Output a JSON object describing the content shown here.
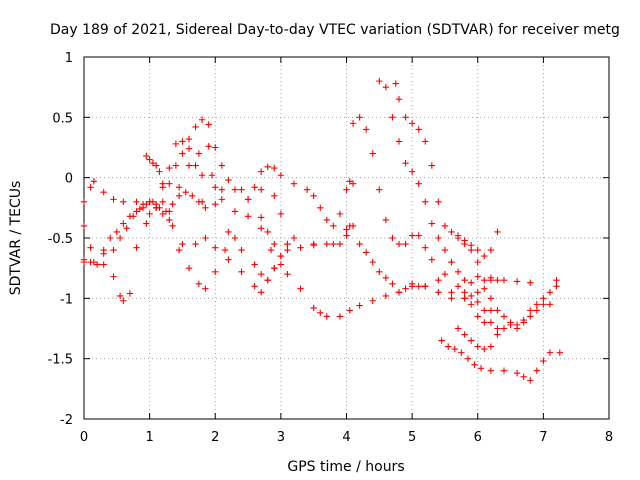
{
  "chart_data": {
    "type": "scatter",
    "title": "Day 189 of 2021, Sidereal Day-to-day VTEC variation (SDTVAR) for receiver metg",
    "xlabel": "GPS time / hours",
    "ylabel": "SDTVAR / TECUs",
    "xlim": [
      0,
      8
    ],
    "ylim": [
      -2,
      1
    ],
    "xticks": [
      "0",
      "1",
      "2",
      "3",
      "4",
      "5",
      "6",
      "7",
      "8"
    ],
    "yticks": [
      "-2",
      "-1.5",
      "-1",
      "-0.5",
      "0",
      "0.5",
      "1"
    ],
    "grid": true,
    "marker": "plus",
    "color": "#ff0000",
    "series": [
      {
        "name": "s1",
        "x": [
          0.0,
          0.1,
          0.15,
          0.3,
          0.45,
          0.6,
          0.8,
          0.9,
          1.0,
          1.1,
          1.2,
          1.3,
          1.45,
          1.6,
          1.75,
          1.9,
          2.0,
          2.1,
          2.3,
          2.5,
          2.7,
          2.9,
          3.0,
          3.2,
          3.5,
          3.8,
          4.0
        ],
        "y": [
          -0.2,
          -0.08,
          -0.03,
          -0.12,
          -0.18,
          -0.2,
          -0.2,
          -0.22,
          -0.2,
          -0.25,
          -0.3,
          -0.28,
          -0.08,
          0.1,
          0.2,
          0.26,
          0.25,
          0.1,
          -0.1,
          -0.18,
          -0.1,
          -0.15,
          -0.3,
          -0.5,
          -0.56,
          -0.55,
          -0.43
        ]
      },
      {
        "name": "s2",
        "x": [
          0.0,
          0.1,
          0.3,
          0.45,
          0.55,
          0.6,
          0.7,
          0.8,
          0.95,
          1.0,
          1.1,
          1.2,
          1.3,
          1.4,
          1.5,
          1.6,
          1.7,
          1.8,
          1.95,
          2.1,
          2.3
        ],
        "y": [
          -0.4,
          -0.58,
          -0.63,
          -0.82,
          -0.98,
          -1.02,
          -0.96,
          -0.58,
          -0.38,
          -0.2,
          -0.25,
          -0.08,
          0.08,
          0.28,
          0.3,
          0.24,
          0.1,
          0.02,
          0.02,
          -0.1,
          -0.28
        ]
      },
      {
        "name": "s3",
        "x": [
          0.0,
          0.1,
          0.2,
          0.3,
          0.4,
          0.5,
          0.6,
          0.7,
          0.8,
          0.9,
          1.0,
          1.1,
          1.2,
          1.3,
          1.4,
          1.5,
          1.6,
          1.7,
          1.8,
          1.9
        ],
        "y": [
          -0.68,
          -0.7,
          -0.72,
          -0.6,
          -0.5,
          -0.45,
          -0.38,
          -0.32,
          -0.28,
          -0.25,
          -0.3,
          -0.22,
          -0.2,
          -0.05,
          0.1,
          0.2,
          0.32,
          0.42,
          0.48,
          0.44
        ]
      },
      {
        "name": "s4",
        "x": [
          0.0,
          0.15,
          0.3,
          0.45,
          0.55,
          0.65,
          0.75,
          0.85,
          0.95,
          1.05,
          1.15,
          1.25,
          1.35,
          1.45,
          1.55,
          1.65,
          1.75,
          1.85,
          2.0,
          2.1
        ],
        "y": [
          -0.7,
          -0.7,
          -0.72,
          -0.6,
          -0.5,
          -0.42,
          -0.32,
          -0.26,
          -0.22,
          -0.2,
          -0.25,
          -0.28,
          -0.22,
          -0.15,
          -0.12,
          -0.15,
          -0.2,
          -0.25,
          -0.22,
          -0.18
        ]
      },
      {
        "name": "s5",
        "x": [
          0.95,
          1.05,
          1.15,
          1.3,
          1.45,
          1.6,
          1.75,
          1.85,
          2.0,
          2.15,
          2.3,
          2.5,
          2.7,
          2.85,
          3.0,
          3.1
        ],
        "y": [
          0.18,
          0.12,
          0.05,
          -0.35,
          -0.6,
          -0.75,
          -0.88,
          -0.92,
          -0.78,
          -0.6,
          -0.5,
          -0.32,
          -0.42,
          -0.6,
          -0.72,
          -0.55
        ]
      },
      {
        "name": "s6",
        "x": [
          1.0,
          1.1,
          1.2,
          1.35,
          1.5,
          1.7,
          1.85,
          2.0,
          2.2,
          2.4,
          2.6,
          2.7,
          2.8,
          2.9,
          3.1,
          3.3,
          3.5,
          3.6,
          3.7,
          3.9,
          4.05,
          4.2,
          4.4,
          4.6,
          4.8,
          5.0,
          5.2,
          5.4,
          5.6,
          5.8,
          6.0,
          6.1,
          6.2,
          6.3
        ],
        "y": [
          0.15,
          0.1,
          -0.05,
          -0.4,
          -0.55,
          -0.55,
          -0.5,
          -0.58,
          -0.68,
          -0.78,
          -0.9,
          -0.95,
          -0.85,
          -0.75,
          -0.8,
          -0.92,
          -1.08,
          -1.12,
          -1.15,
          -1.15,
          -1.1,
          -1.06,
          -1.02,
          -0.98,
          -0.95,
          -0.9,
          -0.9,
          -0.85,
          -0.95,
          -1.0,
          -1.03,
          -1.1,
          -1.2,
          -1.25
        ]
      },
      {
        "name": "s7",
        "x": [
          2.2,
          2.4,
          2.6,
          2.7,
          2.8,
          2.9,
          3.0,
          3.1,
          3.3,
          3.5,
          3.7,
          3.9,
          4.0,
          4.05,
          4.1,
          4.2,
          4.3,
          4.4,
          4.5,
          4.6,
          4.7,
          4.8,
          4.9,
          5.0,
          5.1,
          5.2,
          5.4,
          5.6,
          5.8,
          5.9,
          6.0,
          6.1,
          6.2,
          6.3
        ],
        "y": [
          -0.45,
          -0.6,
          -0.72,
          -0.8,
          -0.85,
          -0.75,
          -0.65,
          -0.6,
          -0.58,
          -0.55,
          -0.55,
          -0.55,
          -0.48,
          -0.4,
          -0.4,
          -0.55,
          -0.62,
          -0.7,
          -0.78,
          -0.83,
          -0.88,
          -0.95,
          -0.92,
          -0.88,
          -0.9,
          -0.9,
          -0.95,
          -1.0,
          -1.0,
          -0.98,
          -0.95,
          -0.92,
          -0.85,
          -0.85
        ]
      },
      {
        "name": "s8",
        "x": [
          1.8,
          2.0,
          2.2,
          2.4,
          2.5,
          2.6,
          2.7,
          2.8,
          2.9,
          3.0,
          3.2,
          3.4,
          3.5,
          3.6,
          3.7,
          3.8,
          3.9,
          4.0,
          4.05,
          4.1
        ],
        "y": [
          -0.2,
          -0.08,
          -0.02,
          -0.1,
          -0.18,
          -0.08,
          0.05,
          0.09,
          0.08,
          0.02,
          -0.05,
          -0.1,
          -0.15,
          -0.25,
          -0.35,
          -0.4,
          -0.3,
          -0.1,
          -0.03,
          -0.05
        ]
      },
      {
        "name": "s9",
        "x": [
          2.7,
          2.8,
          2.9,
          3.0,
          3.1
        ],
        "y": [
          -0.33,
          -0.45,
          -0.55,
          -0.65,
          -0.55
        ]
      },
      {
        "name": "s10",
        "x": [
          4.1,
          4.2,
          4.3,
          4.4,
          4.5,
          4.6,
          4.7,
          4.8,
          4.9,
          5.0,
          5.1,
          5.2,
          5.3,
          5.5,
          5.7,
          5.8,
          5.9,
          6.0,
          6.1,
          6.2
        ],
        "y": [
          0.45,
          0.5,
          0.4,
          0.2,
          -0.1,
          -0.35,
          -0.5,
          -0.55,
          -0.55,
          -0.48,
          -0.48,
          -0.58,
          -0.68,
          -0.8,
          -0.9,
          -0.95,
          -1.05,
          -1.15,
          -1.2,
          -1.1
        ]
      },
      {
        "name": "s11",
        "x": [
          4.5,
          4.6,
          4.7,
          4.8,
          4.9,
          5.0,
          5.1,
          5.2,
          5.3,
          5.4,
          5.5,
          5.6,
          5.7,
          5.8,
          5.9,
          6.0,
          6.2,
          6.4,
          6.6,
          6.8
        ],
        "y": [
          0.8,
          0.75,
          0.5,
          0.3,
          0.12,
          0.05,
          -0.05,
          -0.2,
          -0.38,
          -0.5,
          -0.6,
          -0.7,
          -0.78,
          -0.85,
          -0.87,
          -0.82,
          -0.83,
          -0.85,
          -0.86,
          -0.87
        ]
      },
      {
        "name": "s12",
        "x": [
          4.75,
          4.8,
          4.9,
          5.0,
          5.1,
          5.2,
          5.3,
          5.4,
          5.5,
          5.6,
          5.7,
          5.8,
          5.9,
          6.0,
          6.1,
          6.2,
          6.3
        ],
        "y": [
          0.78,
          0.65,
          0.5,
          0.45,
          0.4,
          0.3,
          0.1,
          -0.2,
          -0.4,
          -0.45,
          -0.48,
          -0.52,
          -0.56,
          -0.6,
          -0.65,
          -0.6,
          -0.45
        ]
      },
      {
        "name": "s13",
        "x": [
          5.6,
          5.7,
          5.8,
          5.9,
          6.0,
          6.1,
          6.2,
          6.3,
          6.4,
          6.5,
          6.6,
          6.7,
          6.8,
          6.9,
          7.0,
          7.1,
          7.2
        ],
        "y": [
          -0.7,
          -0.5,
          -0.55,
          -0.6,
          -0.7,
          -0.85,
          -1.0,
          -1.1,
          -1.15,
          -1.2,
          -1.22,
          -1.18,
          -1.1,
          -1.05,
          -1.0,
          -0.95,
          -0.85
        ]
      },
      {
        "name": "s14",
        "x": [
          5.7,
          5.8,
          5.9,
          6.0,
          6.1,
          6.2,
          6.3,
          6.4,
          6.5,
          6.6,
          6.7,
          6.8,
          6.9,
          7.0,
          7.1,
          7.2
        ],
        "y": [
          -1.25,
          -1.3,
          -1.35,
          -1.4,
          -1.42,
          -1.4,
          -1.3,
          -1.25,
          -1.22,
          -1.25,
          -1.2,
          -1.15,
          -1.1,
          -1.05,
          -1.05,
          -0.9
        ]
      },
      {
        "name": "s15",
        "x": [
          5.45,
          5.55,
          5.65,
          5.75,
          5.85,
          5.95,
          6.05,
          6.2,
          6.4,
          6.6,
          6.7,
          6.8,
          6.9,
          7.0,
          7.1,
          7.25
        ],
        "y": [
          -1.35,
          -1.4,
          -1.42,
          -1.45,
          -1.5,
          -1.55,
          -1.58,
          -1.6,
          -1.6,
          -1.62,
          -1.65,
          -1.68,
          -1.6,
          -1.52,
          -1.45,
          -1.45
        ]
      }
    ]
  }
}
